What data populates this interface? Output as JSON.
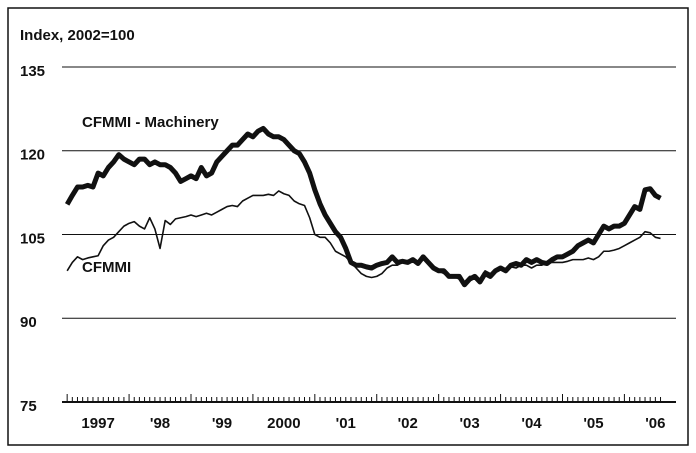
{
  "chart_data": {
    "type": "line",
    "title": "Index, 2002=100",
    "annotations": [
      "CFMMI - Machinery",
      "CFMMI"
    ],
    "x": [
      "1997-01",
      "1997-02",
      "1997-03",
      "1997-04",
      "1997-05",
      "1997-06",
      "1997-07",
      "1997-08",
      "1997-09",
      "1997-10",
      "1997-11",
      "1997-12",
      "1998-01",
      "1998-02",
      "1998-03",
      "1998-04",
      "1998-05",
      "1998-06",
      "1998-07",
      "1998-08",
      "1998-09",
      "1998-10",
      "1998-11",
      "1998-12",
      "1999-01",
      "1999-02",
      "1999-03",
      "1999-04",
      "1999-05",
      "1999-06",
      "1999-07",
      "1999-08",
      "1999-09",
      "1999-10",
      "1999-11",
      "1999-12",
      "2000-01",
      "2000-02",
      "2000-03",
      "2000-04",
      "2000-05",
      "2000-06",
      "2000-07",
      "2000-08",
      "2000-09",
      "2000-10",
      "2000-11",
      "2000-12",
      "2001-01",
      "2001-02",
      "2001-03",
      "2001-04",
      "2001-05",
      "2001-06",
      "2001-07",
      "2001-08",
      "2001-09",
      "2001-10",
      "2001-11",
      "2001-12",
      "2002-01",
      "2002-02",
      "2002-03",
      "2002-04",
      "2002-05",
      "2002-06",
      "2002-07",
      "2002-08",
      "2002-09",
      "2002-10",
      "2002-11",
      "2002-12",
      "2003-01",
      "2003-02",
      "2003-03",
      "2003-04",
      "2003-05",
      "2003-06",
      "2003-07",
      "2003-08",
      "2003-09",
      "2003-10",
      "2003-11",
      "2003-12",
      "2004-01",
      "2004-02",
      "2004-03",
      "2004-04",
      "2004-05",
      "2004-06",
      "2004-07",
      "2004-08",
      "2004-09",
      "2004-10",
      "2004-11",
      "2004-12",
      "2005-01",
      "2005-02",
      "2005-03",
      "2005-04",
      "2005-05",
      "2005-06",
      "2005-07",
      "2005-08",
      "2005-09",
      "2005-10",
      "2005-11",
      "2005-12",
      "2006-01",
      "2006-02",
      "2006-03",
      "2006-04",
      "2006-05",
      "2006-06",
      "2006-07",
      "2006-08"
    ],
    "series": [
      {
        "name": "CFMMI - Machinery",
        "color": "#111111",
        "width": 5,
        "values": [
          110.4,
          112,
          113.5,
          113.5,
          113.8,
          113.5,
          116,
          115.5,
          117,
          118,
          119.3,
          118.5,
          118,
          117.5,
          118.5,
          118.5,
          117.5,
          118,
          117.5,
          117.5,
          117,
          116,
          114.5,
          115,
          115.5,
          115,
          117,
          115.5,
          116,
          118,
          119,
          120,
          121,
          121,
          122,
          123,
          122.5,
          123.5,
          124,
          123,
          122.5,
          122.5,
          122,
          121,
          120,
          119.5,
          118,
          116,
          113,
          110.5,
          108.5,
          107,
          105.5,
          104.5,
          102.5,
          100,
          99.5,
          99.5,
          99.2,
          99,
          99.5,
          99.8,
          100,
          101,
          100,
          100.2,
          100,
          100.5,
          99.8,
          101,
          100,
          99,
          98.5,
          98.5,
          97.5,
          97.5,
          97.5,
          96,
          97,
          97.5,
          96.5,
          98,
          97.5,
          98.5,
          99,
          98.5,
          99.5,
          99.8,
          99.5,
          100.5,
          100,
          100.5,
          100,
          99.8,
          100.5,
          101,
          101,
          101.5,
          102,
          103,
          103.5,
          104,
          103.5,
          105,
          106.5,
          106,
          106.5,
          106.5,
          107,
          108.5,
          110,
          109.5,
          113,
          113.2,
          112,
          111.5
        ]
      },
      {
        "name": "CFMMI",
        "color": "#111111",
        "width": 1.6,
        "values": [
          98.5,
          100,
          101,
          100.5,
          100.8,
          101,
          101.2,
          103,
          104,
          104.5,
          105.5,
          106.5,
          107,
          107.3,
          106.5,
          106,
          108,
          106,
          102.5,
          107.5,
          106.8,
          107.8,
          108,
          108.2,
          108.5,
          108.2,
          108.5,
          108.8,
          108.5,
          109,
          109.5,
          110,
          110.2,
          110,
          111,
          111.5,
          112,
          112,
          112,
          112.2,
          112,
          112.8,
          112.3,
          112,
          111,
          110.5,
          110.2,
          108,
          105,
          104.5,
          104.5,
          103.5,
          102,
          101.5,
          101,
          100,
          99,
          98,
          97.5,
          97.3,
          97.5,
          98,
          99,
          99.5,
          99.5,
          100,
          99.8,
          100.2,
          100,
          100.5,
          100,
          99,
          98.5,
          98,
          97.5,
          97.5,
          97,
          96.5,
          97.5,
          97.5,
          97,
          98.5,
          98,
          98.5,
          98.8,
          98.5,
          99.2,
          99,
          99.5,
          99.5,
          99,
          99.5,
          99.5,
          100,
          100,
          100,
          100,
          100.2,
          100.5,
          100.5,
          100.5,
          100.8,
          100.5,
          101,
          102,
          102,
          102.2,
          102.5,
          103,
          103.5,
          104,
          104.5,
          105.5,
          105.3,
          104.5,
          104.3
        ]
      }
    ],
    "xlim": [
      "1996-12",
      "2006-11"
    ],
    "xticks": [
      {
        "value": "1997-07",
        "label": "1997"
      },
      {
        "value": "1998-07",
        "label": "'98"
      },
      {
        "value": "1999-07",
        "label": "'99"
      },
      {
        "value": "2000-07",
        "label": "2000"
      },
      {
        "value": "2001-07",
        "label": "'01"
      },
      {
        "value": "2002-07",
        "label": "'02"
      },
      {
        "value": "2003-07",
        "label": "'03"
      },
      {
        "value": "2004-07",
        "label": "'04"
      },
      {
        "value": "2005-07",
        "label": "'05"
      },
      {
        "value": "2006-07",
        "label": "'06"
      }
    ],
    "ylim": [
      75,
      135
    ],
    "yticks": [
      75,
      90,
      105,
      120,
      135
    ],
    "grid": true
  }
}
